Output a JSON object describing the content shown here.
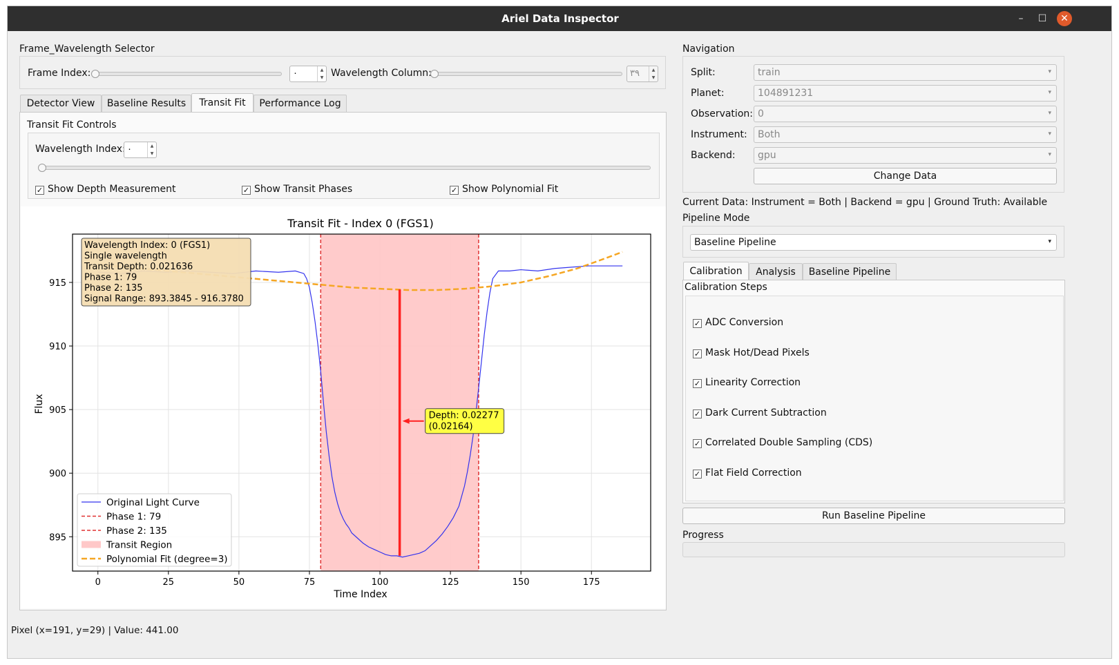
{
  "window": {
    "title": "Ariel Data Inspector",
    "minimize_glyph": "–",
    "maximize_glyph": "☐",
    "close_glyph": "✕"
  },
  "frame_selector": {
    "title": "Frame_Wavelength Selector",
    "frame_index_label": "Frame Index:",
    "frame_index_value": "٠",
    "wavelength_column_label": "Wavelength Column:",
    "wavelength_column_value": "٣٩"
  },
  "tabs": [
    "Detector View",
    "Baseline Results",
    "Transit Fit",
    "Performance Log"
  ],
  "active_tab": "Transit Fit",
  "transit_controls": {
    "title": "Transit Fit Controls",
    "wavelength_index_label": "Wavelength Index:",
    "wavelength_index_value": "٠",
    "checkboxes": [
      {
        "label": "Show Depth Measurement",
        "checked": true
      },
      {
        "label": "Show Transit Phases",
        "checked": true
      },
      {
        "label": "Show Polynomial Fit",
        "checked": true
      }
    ]
  },
  "chart_data": {
    "type": "line",
    "title": "Transit Fit - Index 0 (FGS1)",
    "xlabel": "Time Index",
    "ylabel": "Flux",
    "xlim": [
      -9,
      196
    ],
    "ylim": [
      892.3,
      918.8
    ],
    "xticks": [
      0,
      25,
      50,
      75,
      100,
      125,
      150,
      175
    ],
    "yticks": [
      895,
      900,
      905,
      910,
      915
    ],
    "grid": true,
    "series": [
      {
        "name": "Original Light Curve",
        "color": "#3333ee",
        "x": [
          0,
          8,
          16,
          24,
          32,
          40,
          48,
          56,
          64,
          70,
          73,
          74,
          75,
          76,
          77,
          78,
          79,
          80,
          81,
          82,
          83,
          84,
          85,
          86,
          87,
          88,
          89,
          90,
          92,
          94,
          96,
          98,
          100,
          102,
          104,
          106,
          108,
          110,
          112,
          114,
          116,
          118,
          120,
          122,
          124,
          126,
          128,
          130,
          131,
          132,
          133,
          134,
          135,
          136,
          137,
          138,
          139,
          140,
          142,
          146,
          150,
          156,
          162,
          168,
          174,
          180,
          186
        ],
        "y": [
          915.8,
          915.7,
          915.9,
          915.8,
          915.9,
          915.8,
          915.7,
          915.9,
          915.8,
          915.9,
          915.7,
          915.3,
          914.6,
          913.4,
          911.9,
          910.1,
          908.0,
          905.5,
          903.2,
          901.3,
          899.7,
          898.5,
          897.6,
          896.9,
          896.4,
          896.0,
          895.7,
          895.3,
          894.9,
          894.5,
          894.2,
          894.0,
          893.8,
          893.6,
          893.5,
          893.5,
          893.4,
          893.5,
          893.6,
          893.7,
          893.9,
          894.3,
          894.7,
          895.2,
          895.8,
          896.5,
          897.4,
          899.0,
          900.1,
          901.4,
          902.9,
          904.7,
          906.7,
          908.8,
          910.9,
          912.7,
          914.2,
          915.3,
          915.9,
          915.9,
          916.0,
          915.9,
          916.1,
          916.2,
          916.3,
          916.3,
          916.3
        ]
      },
      {
        "name": "Polynomial Fit (degree=3)",
        "color": "#f5a623",
        "x": [
          0,
          10,
          20,
          30,
          40,
          50,
          60,
          70,
          80,
          90,
          100,
          110,
          120,
          130,
          140,
          150,
          160,
          170,
          180,
          186
        ],
        "y": [
          916.4,
          916.2,
          916.0,
          915.8,
          915.6,
          915.4,
          915.2,
          915.0,
          914.8,
          914.6,
          914.5,
          914.4,
          914.4,
          914.5,
          914.7,
          915.0,
          915.5,
          916.1,
          916.9,
          917.4
        ]
      }
    ],
    "phase1": 79,
    "phase2": 135,
    "transit_region": [
      79,
      135
    ],
    "depth_line": {
      "x": 107,
      "y_top": 914.45,
      "y_bottom": 893.5
    },
    "legend": {
      "placement": "lower-left",
      "entries": [
        "Original Light Curve",
        "Phase 1: 79",
        "Phase 2: 135",
        "Transit Region",
        "Polynomial Fit (degree=3)"
      ]
    },
    "info_box": [
      "Wavelength Index: 0 (FGS1)",
      "Single wavelength",
      "Transit Depth: 0.021636",
      "Phase 1: 79",
      "Phase 2: 135",
      "Signal Range: 893.3845 - 916.3780"
    ],
    "depth_annotation": [
      "Depth: 0.02277",
      "(0.02164)"
    ],
    "colors": {
      "transit_region": "#ffc8c8",
      "phase_line": "#e03030",
      "depth_line": "#ff2020",
      "annotation_bg": "#ffff44",
      "info_bg": "#f5deb3"
    }
  },
  "navigation": {
    "title": "Navigation",
    "fields": [
      {
        "label": "Split:",
        "value": "train"
      },
      {
        "label": "Planet:",
        "value": "104891231"
      },
      {
        "label": "Observation:",
        "value": "0"
      },
      {
        "label": "Instrument:",
        "value": "Both"
      },
      {
        "label": "Backend:",
        "value": "gpu"
      }
    ],
    "change_button": "Change Data"
  },
  "current_data": "Current Data: Instrument = Both | Backend = gpu | Ground Truth: Available",
  "pipeline": {
    "label": "Pipeline Mode",
    "mode": "Baseline Pipeline",
    "tabs": [
      "Calibration",
      "Analysis",
      "Baseline Pipeline"
    ],
    "active_tab": "Calibration",
    "steps_title": "Calibration Steps",
    "steps": [
      {
        "label": "ADC Conversion",
        "checked": true
      },
      {
        "label": "Mask Hot/Dead Pixels",
        "checked": true
      },
      {
        "label": "Linearity Correction",
        "checked": true
      },
      {
        "label": "Dark Current Subtraction",
        "checked": true
      },
      {
        "label": "Correlated Double Sampling (CDS)",
        "checked": true
      },
      {
        "label": "Flat Field Correction",
        "checked": true
      }
    ],
    "run_button": "Run Baseline Pipeline",
    "progress_label": "Progress",
    "progress_value": 0
  },
  "status_bar": "Pixel (x=191, y=29) | Value: 441.00",
  "check_glyph": "✓",
  "arrow_glyph": "▾"
}
